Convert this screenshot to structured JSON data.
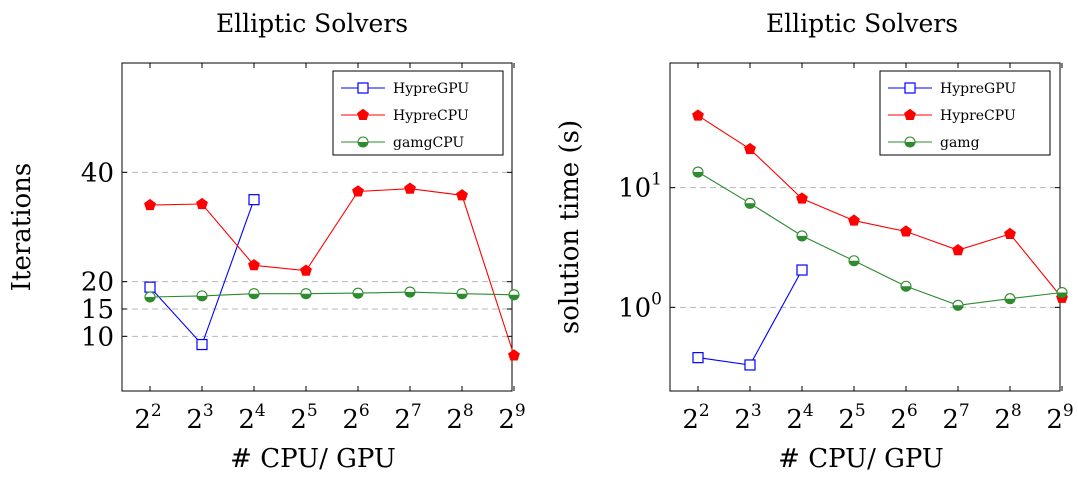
{
  "chart_data": [
    {
      "type": "line",
      "title": "Elliptic Solvers",
      "xlabel": "# CPU/ GPU",
      "ylabel": "Iterations",
      "x": [
        4,
        8,
        16,
        32,
        64,
        128,
        256,
        512
      ],
      "x_ticks": [
        {
          "base": "2",
          "exp": "2"
        },
        {
          "base": "2",
          "exp": "3"
        },
        {
          "base": "2",
          "exp": "4"
        },
        {
          "base": "2",
          "exp": "5"
        },
        {
          "base": "2",
          "exp": "6"
        },
        {
          "base": "2",
          "exp": "7"
        },
        {
          "base": "2",
          "exp": "8"
        },
        {
          "base": "2",
          "exp": "9"
        }
      ],
      "y_scale": "linear",
      "ylim": [
        0,
        60
      ],
      "y_ticks": [
        "10",
        "15",
        "20",
        "40"
      ],
      "grid": "y-major dashed",
      "legend_position": "top-right",
      "series": [
        {
          "name": "HypreGPU",
          "color": "#0000ff",
          "marker": "open-square",
          "values": [
            19,
            8.5,
            35,
            null,
            null,
            null,
            null,
            null
          ]
        },
        {
          "name": "HypreCPU",
          "color": "#ff0000",
          "marker": "filled-pentagon",
          "values": [
            34,
            34.2,
            23,
            22,
            36.5,
            37,
            35.8,
            6.5
          ]
        },
        {
          "name": "gamgCPU",
          "color": "#2e8b2e",
          "marker": "half-filled-circle",
          "values": [
            17.2,
            17.4,
            17.8,
            17.8,
            17.9,
            18.1,
            17.8,
            17.6
          ]
        }
      ]
    },
    {
      "type": "line",
      "title": "Elliptic Solvers",
      "xlabel": "# CPU/ GPU",
      "ylabel": "solution time (s)",
      "x": [
        4,
        8,
        16,
        32,
        64,
        128,
        256,
        512
      ],
      "x_ticks": [
        {
          "base": "2",
          "exp": "2"
        },
        {
          "base": "2",
          "exp": "3"
        },
        {
          "base": "2",
          "exp": "4"
        },
        {
          "base": "2",
          "exp": "5"
        },
        {
          "base": "2",
          "exp": "6"
        },
        {
          "base": "2",
          "exp": "7"
        },
        {
          "base": "2",
          "exp": "8"
        },
        {
          "base": "2",
          "exp": "9"
        }
      ],
      "y_scale": "log",
      "ylim": [
        0.2,
        110
      ],
      "y_ticks": [
        {
          "base": "10",
          "exp": "0",
          "value": 1
        },
        {
          "base": "10",
          "exp": "1",
          "value": 10
        }
      ],
      "grid": "y-major dashed",
      "legend_position": "top-right",
      "series": [
        {
          "name": "HypreGPU",
          "color": "#0000ff",
          "marker": "open-square",
          "values": [
            0.38,
            0.33,
            2.05,
            null,
            null,
            null,
            null,
            null
          ]
        },
        {
          "name": "HypreCPU",
          "color": "#ff0000",
          "marker": "filled-pentagon",
          "values": [
            40,
            21,
            8.1,
            5.3,
            4.3,
            3.0,
            4.1,
            1.2
          ]
        },
        {
          "name": "gamg",
          "color": "#2e8b2e",
          "marker": "half-filled-circle",
          "values": [
            13.5,
            7.4,
            3.95,
            2.45,
            1.5,
            1.04,
            1.18,
            1.33
          ]
        }
      ]
    }
  ]
}
